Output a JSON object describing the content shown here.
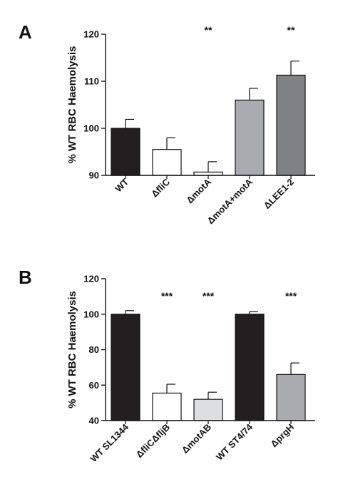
{
  "chart_data": [
    {
      "panel_label": "A",
      "type": "bar",
      "ylabel": "% WT RBC Haemolysis",
      "ylim": [
        90,
        120
      ],
      "yticks": [
        90,
        100,
        110,
        120
      ],
      "categories": [
        "WT",
        "ΔfliC",
        "ΔmotA",
        "ΔmotA+motA",
        "ΔLEE1-2"
      ],
      "values": [
        100,
        95.5,
        90.7,
        106,
        111.3
      ],
      "errors": [
        1.9,
        2.5,
        2.2,
        2.5,
        3.0
      ],
      "significance": [
        "",
        "",
        "**",
        "",
        "**"
      ],
      "colors": [
        "#231f20",
        "#ffffff",
        "#ffffff",
        "#a9abb0",
        "#808284"
      ]
    },
    {
      "panel_label": "B",
      "type": "bar",
      "ylabel": "% WT RBC Haemolysis",
      "ylim": [
        40,
        120
      ],
      "yticks": [
        40,
        60,
        80,
        100,
        120
      ],
      "categories": [
        "WT SL1344",
        "ΔfliCΔfljB",
        "ΔmotAB",
        "WT ST4/74",
        "ΔprgH"
      ],
      "values": [
        100,
        55.5,
        52,
        100,
        66
      ],
      "errors": [
        2,
        5,
        4,
        1.5,
        6.5
      ],
      "significance": [
        "",
        "***",
        "***",
        "",
        "***"
      ],
      "colors": [
        "#231f20",
        "#ffffff",
        "#dcdee0",
        "#231f20",
        "#a9abb0"
      ]
    }
  ]
}
